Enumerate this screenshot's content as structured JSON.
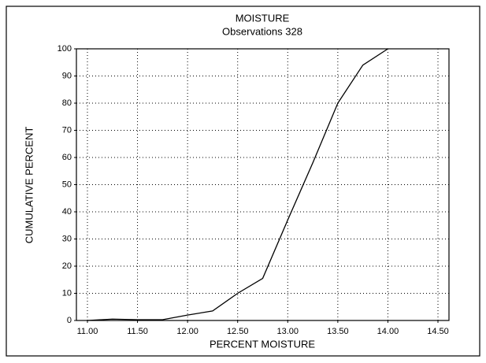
{
  "chart_data": {
    "type": "line",
    "title": "MOISTURE",
    "subtitle": "Observations 328",
    "xlabel": "PERCENT MOISTURE",
    "ylabel": "CUMULATIVE PERCENT",
    "x": [
      11.0,
      11.25,
      11.5,
      11.75,
      12.0,
      12.25,
      12.5,
      12.75,
      13.0,
      13.25,
      13.5,
      13.75,
      14.0
    ],
    "values": [
      0,
      0.5,
      0.3,
      0.3,
      2,
      3.5,
      10,
      15.5,
      37,
      58,
      80,
      94,
      100
    ],
    "color": "#000000",
    "xlim": [
      10.89,
      14.61
    ],
    "xticks": [
      {
        "value": 11,
        "label": "11.00"
      },
      {
        "value": 11.5,
        "label": "11.50"
      },
      {
        "value": 12,
        "label": "12.00"
      },
      {
        "value": 12.5,
        "label": "12.50"
      },
      {
        "value": 13,
        "label": "13.00"
      },
      {
        "value": 13.5,
        "label": "13.50"
      },
      {
        "value": 14,
        "label": "14.00"
      },
      {
        "value": 14.5,
        "label": "14.50"
      }
    ],
    "ylim": [
      0,
      100
    ],
    "yticks": [
      0,
      10,
      20,
      30,
      40,
      50,
      60,
      70,
      80,
      90,
      100
    ],
    "grid": true
  }
}
